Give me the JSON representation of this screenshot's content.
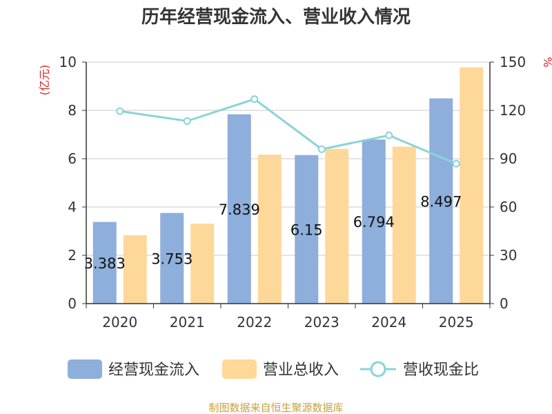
{
  "chart_data": {
    "type": "bar",
    "title": "历年经营现金流入、营业收入情况",
    "categories": [
      "2020",
      "2021",
      "2022",
      "2023",
      "2024",
      "2025"
    ],
    "series": [
      {
        "name": "经营现金流入",
        "kind": "bar",
        "axis": "left",
        "color": "#8eaedb",
        "values": [
          3.383,
          3.753,
          7.839,
          6.15,
          6.794,
          8.497
        ],
        "labels": [
          "3.383",
          "3.753",
          "7.839",
          "6.15",
          "6.794",
          "8.497"
        ]
      },
      {
        "name": "营业总收入",
        "kind": "bar",
        "axis": "left",
        "color": "#fed899",
        "values": [
          2.83,
          3.31,
          6.17,
          6.41,
          6.5,
          9.78
        ]
      },
      {
        "name": "营收现金比",
        "kind": "line",
        "axis": "right",
        "color": "#88d4d8",
        "values": [
          119.5,
          113.4,
          127.0,
          95.9,
          104.5,
          86.9
        ]
      }
    ],
    "y_left": {
      "label": "(亿元)",
      "min": 0,
      "max": 10,
      "ticks": [
        "0",
        "2",
        "4",
        "6",
        "8",
        "10"
      ]
    },
    "y_right": {
      "label": "%",
      "min": 0,
      "max": 150,
      "ticks": [
        "0",
        "30",
        "60",
        "90",
        "120",
        "150"
      ]
    },
    "grid": true,
    "legend_position": "bottom",
    "source": "制图数据来自恒生聚源数据库"
  }
}
